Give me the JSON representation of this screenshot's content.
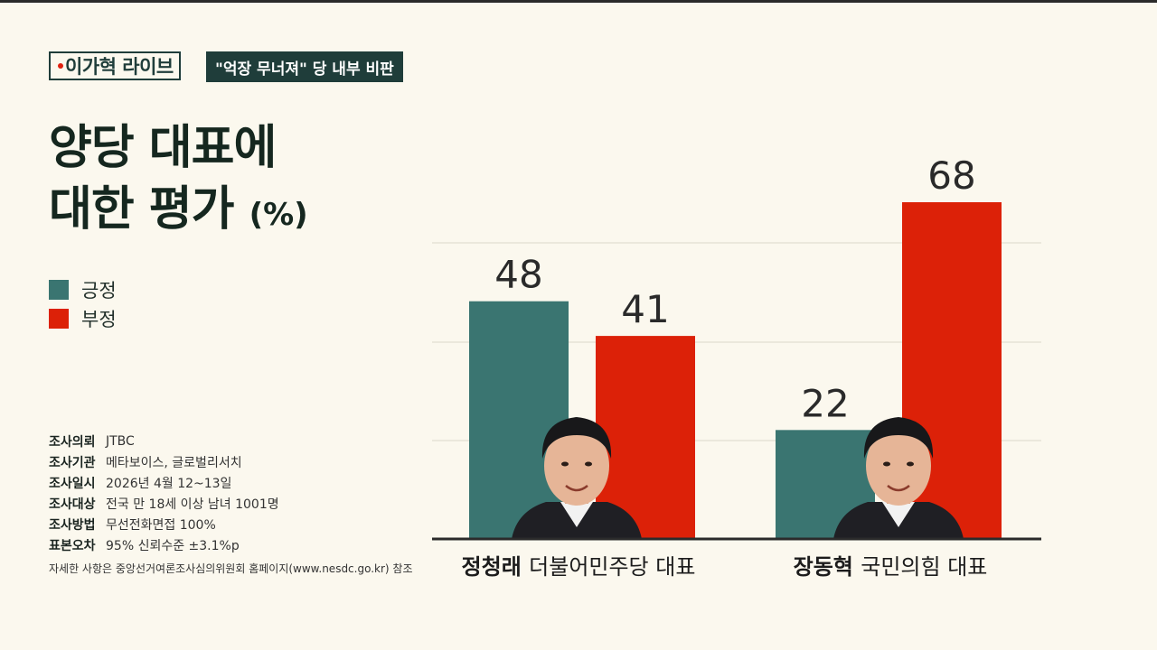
{
  "header": {
    "program": "이가혁 라이브",
    "subject": "\"억장 무너져\" 당 내부 비판"
  },
  "title": {
    "line1": "양당 대표에",
    "line2": "대한 평가",
    "unit": "(%)"
  },
  "legend": [
    {
      "label": "긍정",
      "color": "#3a7571"
    },
    {
      "label": "부정",
      "color": "#dc2108"
    }
  ],
  "survey_info": [
    {
      "key": "조사의뢰",
      "value": "JTBC"
    },
    {
      "key": "조사기관",
      "value": "메타보이스, 글로벌리서치"
    },
    {
      "key": "조사일시",
      "value": "2026년 4월 12~13일"
    },
    {
      "key": "조사대상",
      "value": "전국 만 18세 이상 남녀 1001명"
    },
    {
      "key": "조사방법",
      "value": "무선전화면접 100%"
    },
    {
      "key": "표본오차",
      "value": "95% 신뢰수준 ±3.1%p"
    }
  ],
  "footnote": "자세한 사항은 중앙선거여론조사심의위원회 홈페이지(www.nesdc.go.kr) 참조",
  "colors": {
    "positive": "#3a7571",
    "negative": "#dc2108",
    "grid": "#e6e2d6",
    "baseline": "#2b2b2b"
  },
  "chart_data": {
    "type": "bar",
    "categories": [
      {
        "name": "정청래",
        "role": "더불어민주당 대표"
      },
      {
        "name": "장동혁",
        "role": "국민의힘 대표"
      }
    ],
    "series": [
      {
        "name": "긍정",
        "values": [
          48,
          22
        ]
      },
      {
        "name": "부정",
        "values": [
          41,
          68
        ]
      }
    ],
    "ylim": [
      0,
      68
    ],
    "grid": true
  }
}
